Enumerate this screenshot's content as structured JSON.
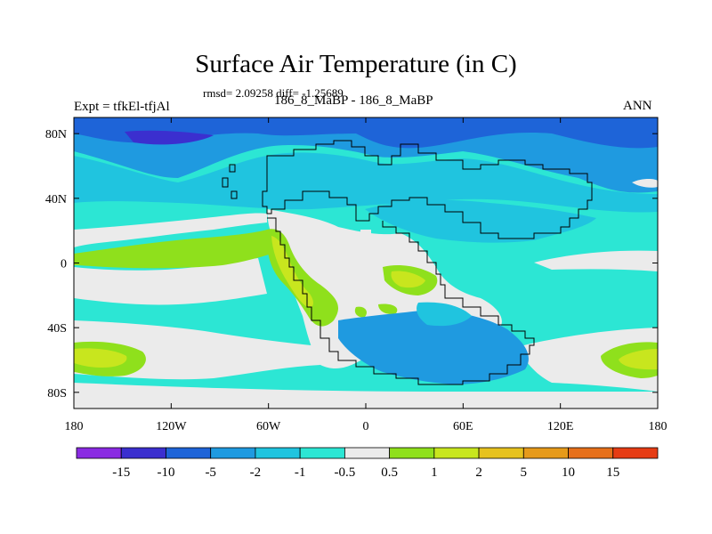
{
  "title": "Surface Air Temperature (in C)",
  "stats": "rmsd= 2.09258 diff= -1.25689",
  "left_label": "Expt = tfkEl-tfjAl",
  "center_label": "186_8_MaBP - 186_8_MaBP",
  "right_label": "ANN",
  "map": {
    "lon_range": [
      -180,
      180
    ],
    "lat_range": [
      -90,
      90
    ],
    "x_ticks": [
      {
        "value": -180,
        "label": "180"
      },
      {
        "value": -120,
        "label": "120W"
      },
      {
        "value": -60,
        "label": "60W"
      },
      {
        "value": 0,
        "label": "0"
      },
      {
        "value": 60,
        "label": "60E"
      },
      {
        "value": 120,
        "label": "120E"
      },
      {
        "value": 180,
        "label": "180"
      }
    ],
    "y_ticks": [
      {
        "value": 80,
        "label": "80N"
      },
      {
        "value": 40,
        "label": "40N"
      },
      {
        "value": 0,
        "label": "0"
      },
      {
        "value": -40,
        "label": "40S"
      },
      {
        "value": -80,
        "label": "80S"
      }
    ]
  },
  "colorbar": {
    "colors": [
      "#8a2be2",
      "#3b2fcf",
      "#1e64d8",
      "#1f9ae0",
      "#20c4df",
      "#2ce6d4",
      "#ebebeb",
      "#8fe01c",
      "#c8e61e",
      "#e6c21e",
      "#e69a1a",
      "#e6701a",
      "#e63c14"
    ],
    "labels": [
      "-15",
      "-10",
      "-5",
      "-2",
      "-1",
      "-0.5",
      "0.5",
      "1",
      "2",
      "5",
      "10",
      "15"
    ]
  },
  "colors": {
    "background_land": "#1f9ae0",
    "ocean_mid": "#2ce6d4",
    "neutral": "#ebebeb",
    "positive_low": "#8fe01c",
    "positive_mid": "#c8e61e",
    "negative_high": "#1e64d8",
    "negative_very_high": "#3b2fcf"
  }
}
